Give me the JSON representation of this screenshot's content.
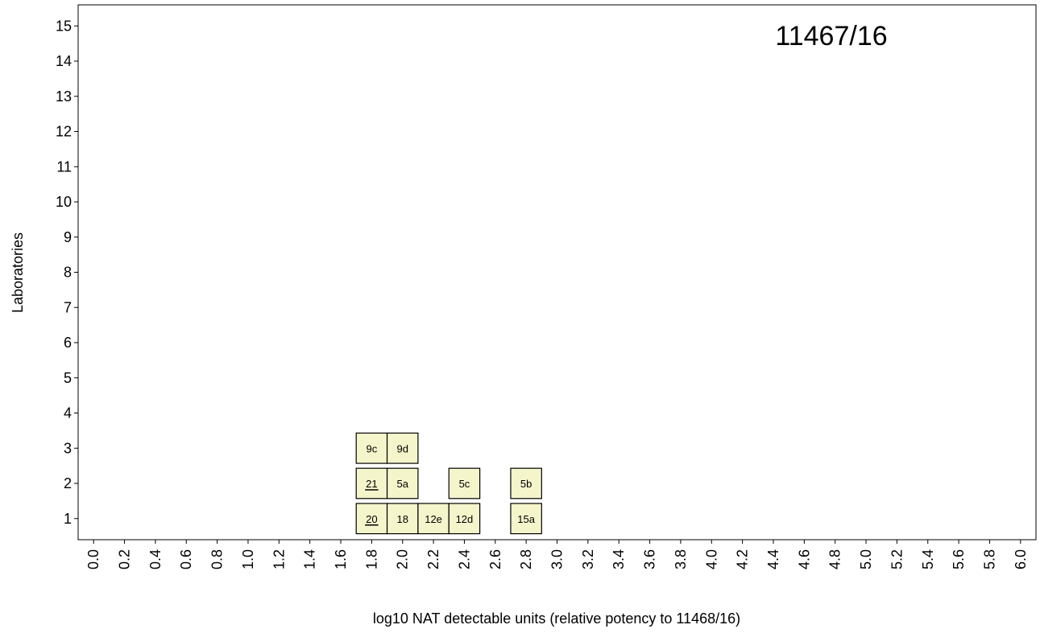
{
  "chart_data": {
    "type": "histogram",
    "title": "11467/16",
    "xlabel": "log10 NAT detectable units (relative potency to 11468/16)",
    "ylabel": "Laboratories",
    "xlim": [
      -0.1,
      6.1
    ],
    "ylim": [
      0.4,
      15.6
    ],
    "x_ticks": [
      "0.0",
      "0.2",
      "0.4",
      "0.6",
      "0.8",
      "1.0",
      "1.2",
      "1.4",
      "1.6",
      "1.8",
      "2.0",
      "2.2",
      "2.4",
      "2.6",
      "2.8",
      "3.0",
      "3.2",
      "3.4",
      "3.6",
      "3.8",
      "4.0",
      "4.2",
      "4.4",
      "4.6",
      "4.8",
      "5.0",
      "5.2",
      "5.4",
      "5.6",
      "5.8",
      "6.0"
    ],
    "y_ticks": [
      "1",
      "2",
      "3",
      "4",
      "5",
      "6",
      "7",
      "8",
      "9",
      "10",
      "11",
      "12",
      "13",
      "14",
      "15"
    ],
    "bin_width": 0.2,
    "colors": {
      "box_fill": "#f5f5cc",
      "box_stroke": "#000000"
    },
    "boxes": [
      {
        "x": 1.8,
        "count": 1,
        "label": "20",
        "underline": true
      },
      {
        "x": 1.8,
        "count": 2,
        "label": "21",
        "underline": true
      },
      {
        "x": 1.8,
        "count": 3,
        "label": "9c",
        "underline": false
      },
      {
        "x": 2.0,
        "count": 1,
        "label": "18",
        "underline": false
      },
      {
        "x": 2.0,
        "count": 2,
        "label": "5a",
        "underline": false
      },
      {
        "x": 2.0,
        "count": 3,
        "label": "9d",
        "underline": false
      },
      {
        "x": 2.2,
        "count": 1,
        "label": "12e",
        "underline": false
      },
      {
        "x": 2.4,
        "count": 1,
        "label": "12d",
        "underline": false
      },
      {
        "x": 2.4,
        "count": 2,
        "label": "5c",
        "underline": false
      },
      {
        "x": 2.8,
        "count": 1,
        "label": "15a",
        "underline": false
      },
      {
        "x": 2.8,
        "count": 2,
        "label": "5b",
        "underline": false
      }
    ]
  }
}
